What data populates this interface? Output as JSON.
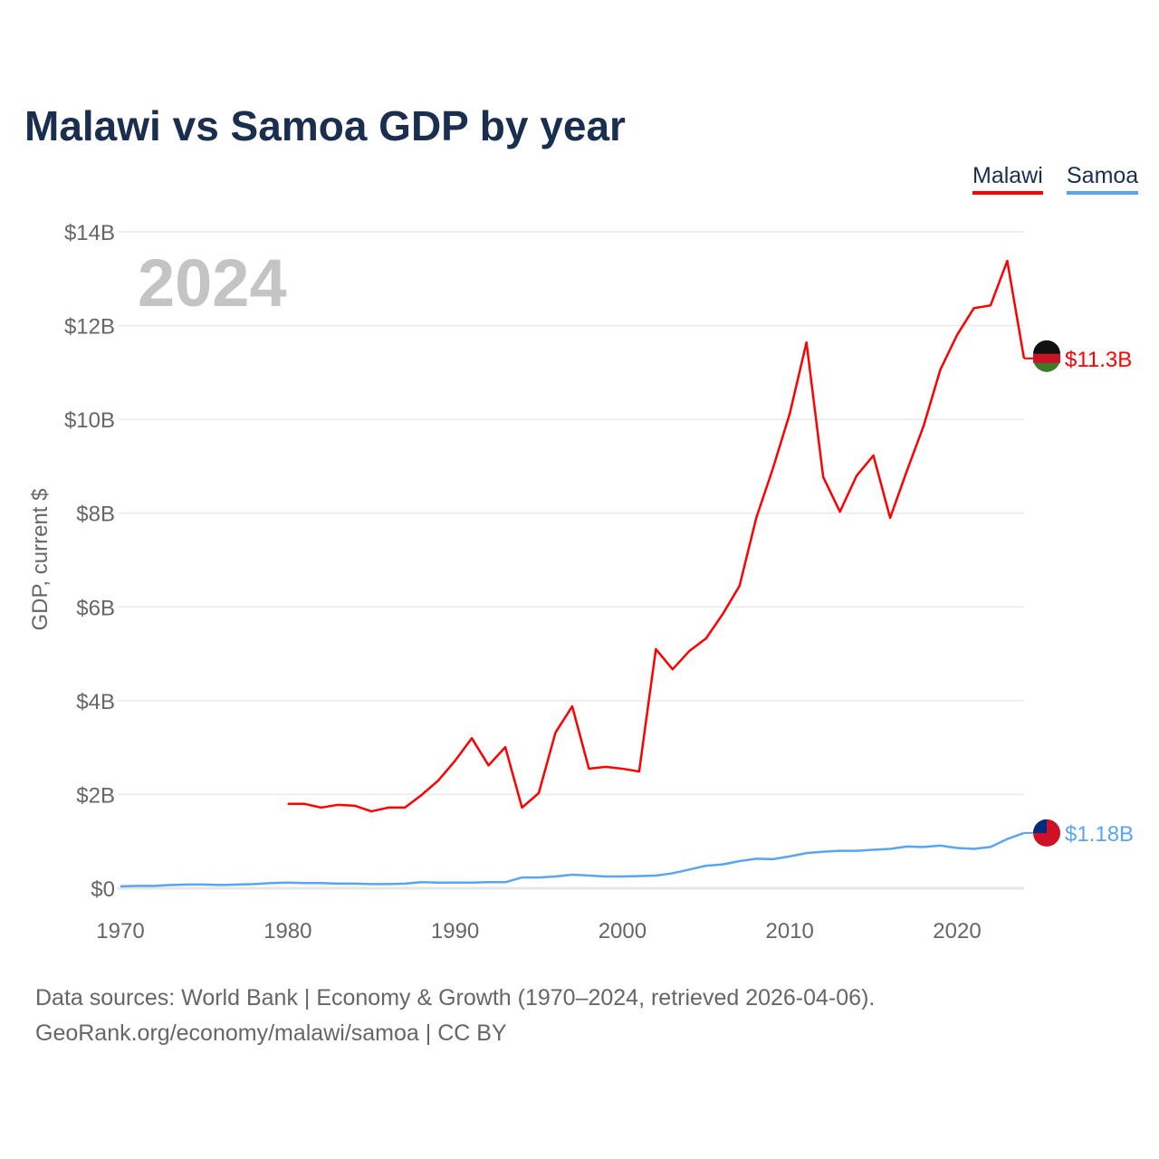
{
  "title": "Malawi vs Samoa GDP by year",
  "legend": [
    "Malawi",
    "Samoa"
  ],
  "year_label": "2024",
  "footer": [
    "Data sources: World Bank | Economy & Growth (1970–2024, retrieved 2026-04-06).",
    "GeoRank.org/economy/malawi/samoa | CC BY"
  ],
  "chart_data": {
    "type": "line",
    "title": "Malawi vs Samoa GDP by year",
    "ylabel": "GDP, current $",
    "xlabel": "",
    "xlim": [
      1970,
      2024
    ],
    "ylim": [
      0,
      14
    ],
    "yunit": "billions USD",
    "xticks": [
      "1970",
      "1980",
      "1990",
      "2000",
      "2010",
      "2020"
    ],
    "yticks": [
      "$0",
      "$2B",
      "$4B",
      "$6B",
      "$8B",
      "$10B",
      "$12B",
      "$14B"
    ],
    "grid": true,
    "legend_position": "top-right",
    "series": [
      {
        "name": "Malawi",
        "color": "#ff0000",
        "end_label": "$11.3B",
        "start_year": 1980,
        "values": [
          1.8,
          1.8,
          1.72,
          1.78,
          1.76,
          1.64,
          1.72,
          1.72,
          1.99,
          2.3,
          2.72,
          3.2,
          2.62,
          3.01,
          1.72,
          2.03,
          3.32,
          3.88,
          2.55,
          2.59,
          2.55,
          2.49,
          5.1,
          4.67,
          5.06,
          5.33,
          5.85,
          6.45,
          7.9,
          8.96,
          10.12,
          11.64,
          8.77,
          8.03,
          8.8,
          9.23,
          7.9,
          8.9,
          9.86,
          11.06,
          11.8,
          12.37,
          12.43,
          13.38,
          11.3
        ]
      },
      {
        "name": "Samoa",
        "color": "#5aa5ef",
        "end_label": "$1.18B",
        "start_year": 1970,
        "values": [
          0.04,
          0.05,
          0.05,
          0.07,
          0.08,
          0.08,
          0.07,
          0.08,
          0.09,
          0.11,
          0.12,
          0.11,
          0.11,
          0.1,
          0.1,
          0.09,
          0.09,
          0.1,
          0.13,
          0.12,
          0.12,
          0.12,
          0.13,
          0.13,
          0.23,
          0.23,
          0.25,
          0.29,
          0.27,
          0.25,
          0.25,
          0.26,
          0.27,
          0.32,
          0.4,
          0.48,
          0.51,
          0.58,
          0.63,
          0.62,
          0.68,
          0.75,
          0.78,
          0.8,
          0.8,
          0.82,
          0.84,
          0.89,
          0.88,
          0.91,
          0.86,
          0.84,
          0.88,
          1.05,
          1.18
        ]
      }
    ]
  }
}
